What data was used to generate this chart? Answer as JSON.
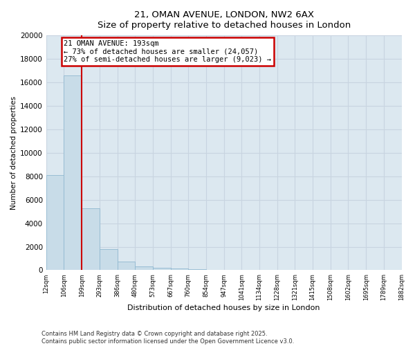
{
  "title_line1": "21, OMAN AVENUE, LONDON, NW2 6AX",
  "title_line2": "Size of property relative to detached houses in London",
  "bar_values": [
    8100,
    16600,
    5300,
    1800,
    750,
    350,
    200,
    120,
    100,
    30,
    10,
    5,
    3,
    2,
    2,
    1,
    1,
    1,
    1,
    1
  ],
  "x_labels": [
    "12sqm",
    "106sqm",
    "199sqm",
    "293sqm",
    "386sqm",
    "480sqm",
    "573sqm",
    "667sqm",
    "760sqm",
    "854sqm",
    "947sqm",
    "1041sqm",
    "1134sqm",
    "1228sqm",
    "1321sqm",
    "1415sqm",
    "1508sqm",
    "1602sqm",
    "1695sqm",
    "1789sqm",
    "1882sqm"
  ],
  "bar_color": "#c8dce8",
  "bar_edge_color": "#90b8d0",
  "red_line_x": 1.5,
  "ylabel": "Number of detached properties",
  "xlabel": "Distribution of detached houses by size in London",
  "annotation_line1": "21 OMAN AVENUE: 193sqm",
  "annotation_line2": "← 73% of detached houses are smaller (24,057)",
  "annotation_line3": "27% of semi-detached houses are larger (9,023) →",
  "annotation_box_color": "#ffffff",
  "annotation_box_edge": "#cc0000",
  "ylim": [
    0,
    20000
  ],
  "yticks": [
    0,
    2000,
    4000,
    6000,
    8000,
    10000,
    12000,
    14000,
    16000,
    18000,
    20000
  ],
  "grid_color": "#c8d4e0",
  "bg_color": "#dce8f0",
  "footer_line1": "Contains HM Land Registry data © Crown copyright and database right 2025.",
  "footer_line2": "Contains public sector information licensed under the Open Government Licence v3.0."
}
